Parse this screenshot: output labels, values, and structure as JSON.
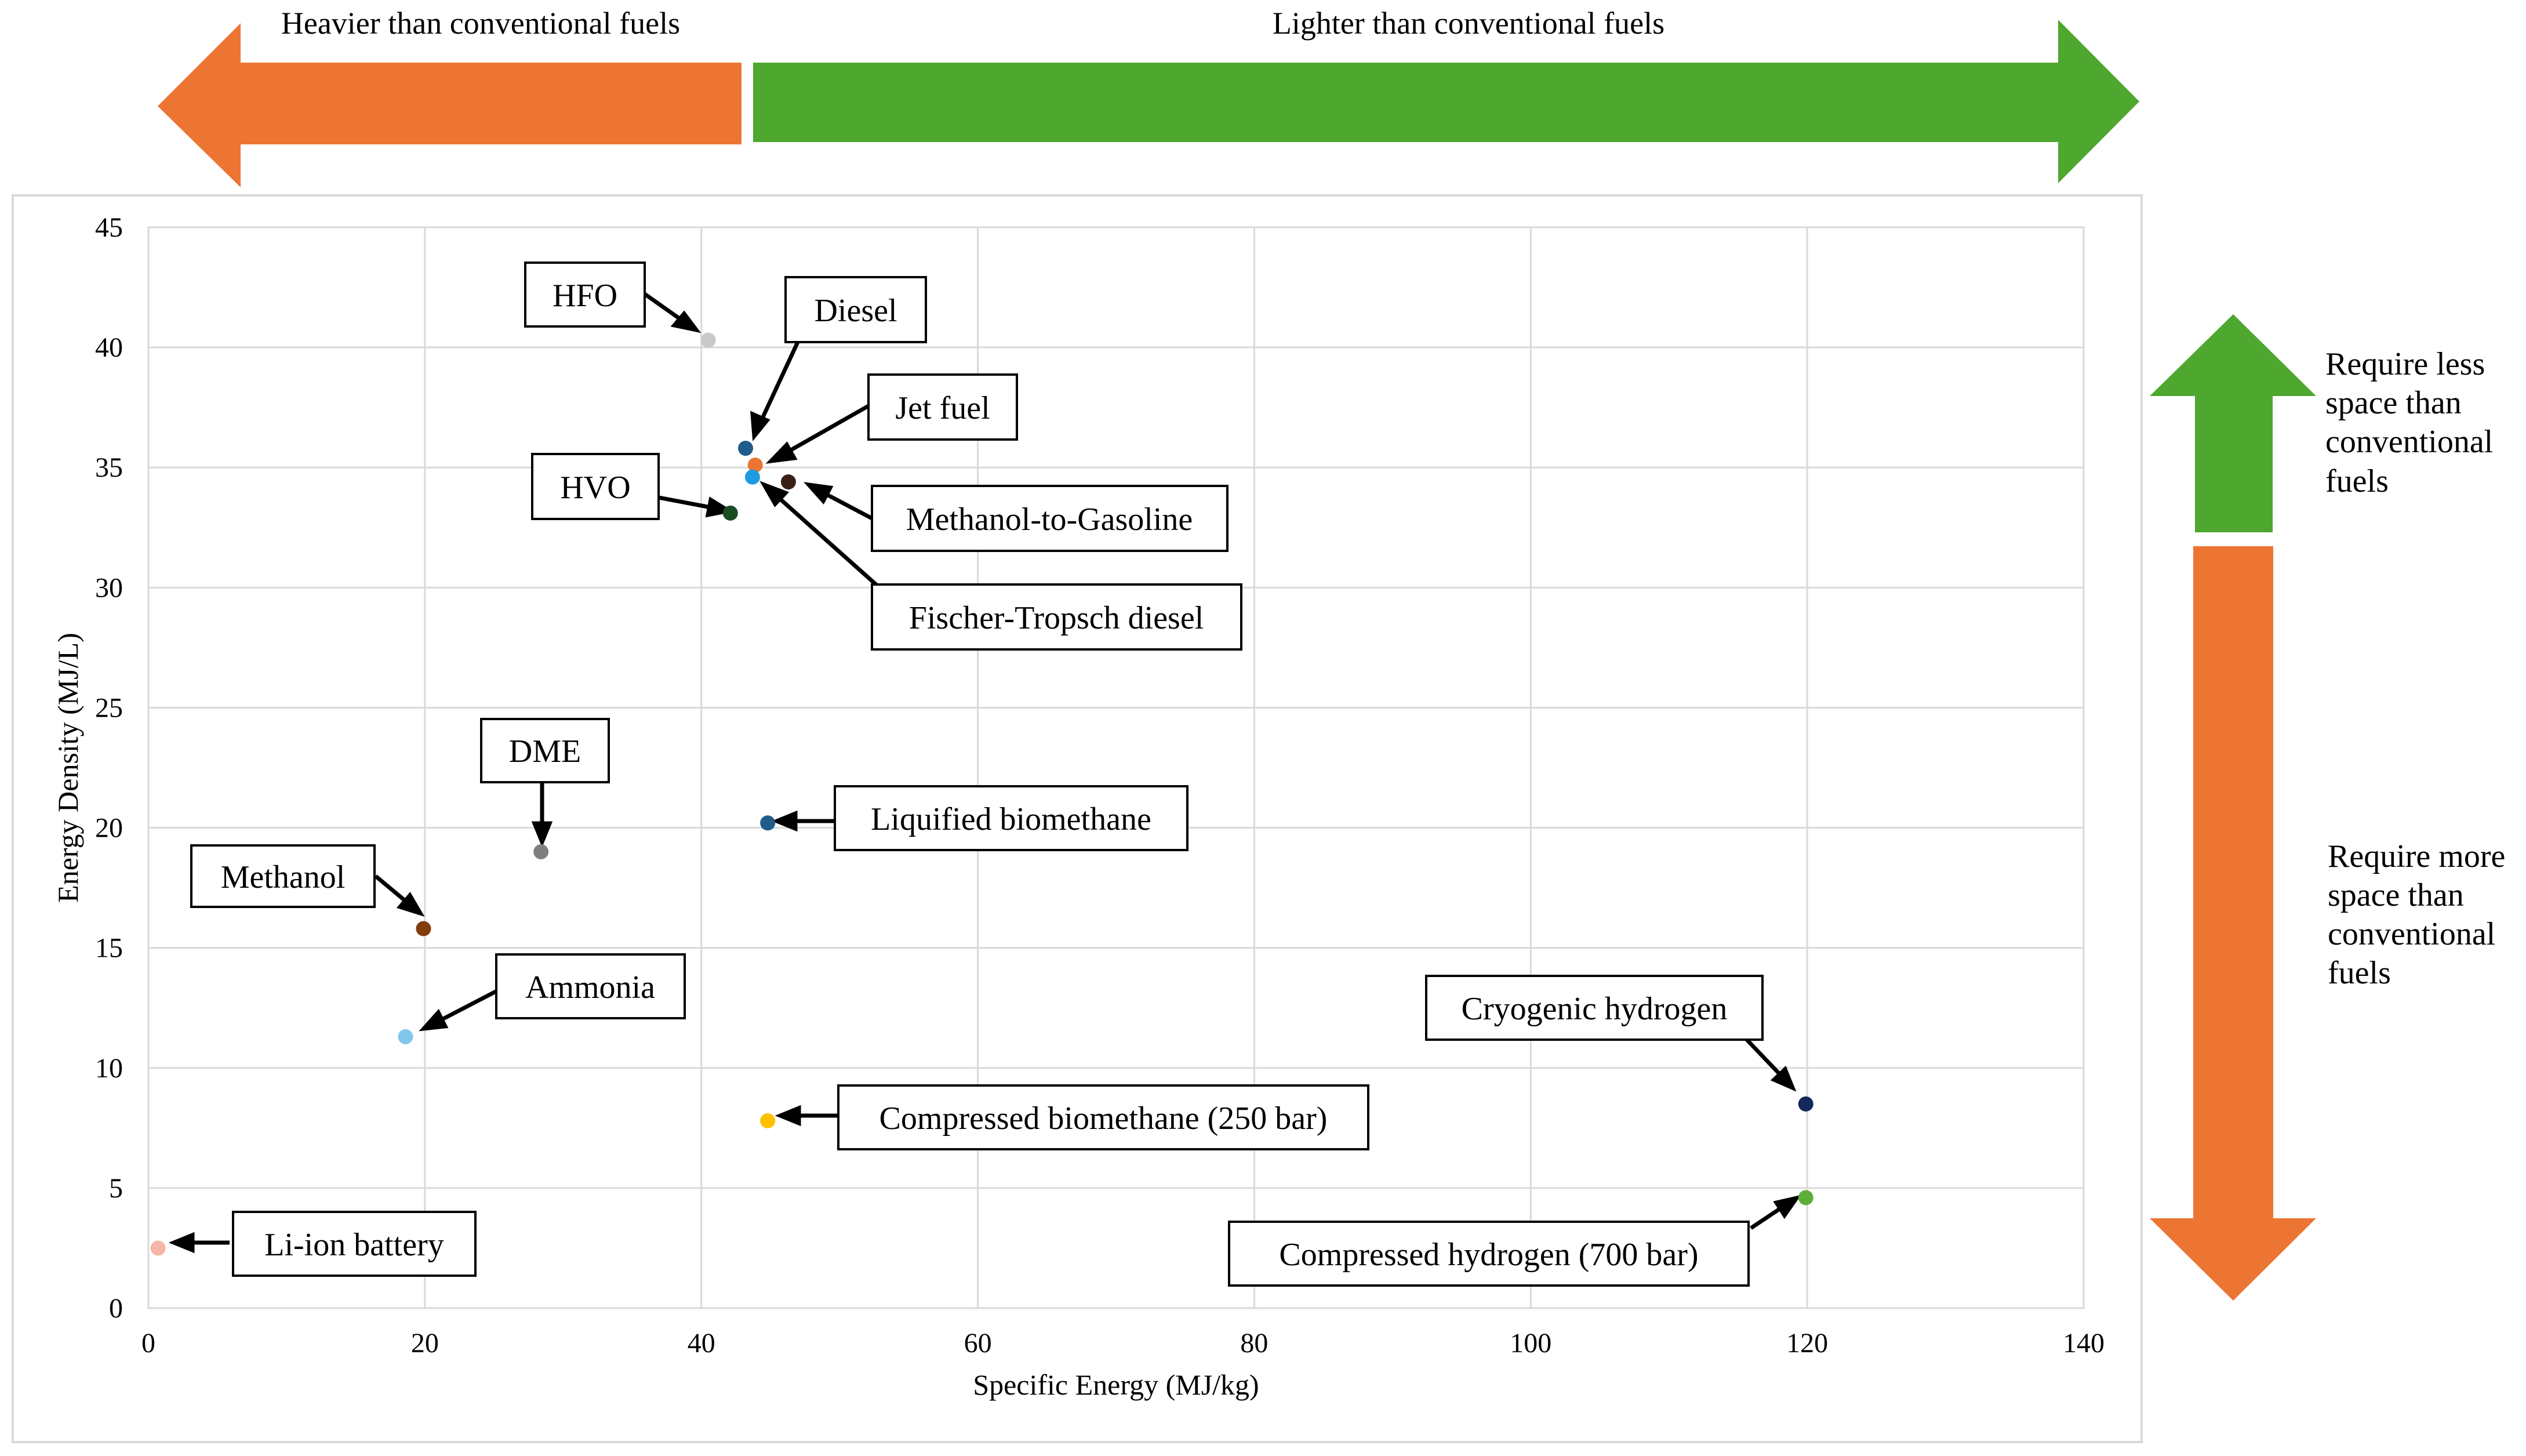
{
  "colors": {
    "heavier": "#ED7534",
    "lighter": "#4EA72E",
    "less_space": "#4EA72E",
    "more_space": "#ED7534",
    "grid": "#D9D9D9"
  },
  "banners": {
    "heavier": "Heavier than conventional fuels",
    "lighter": "Lighter than conventional fuels",
    "less_space": [
      "Require less",
      "space than",
      "conventional",
      "fuels"
    ],
    "more_space": [
      "Require more",
      "space than",
      "conventional",
      "fuels"
    ]
  },
  "chart_data": {
    "type": "scatter",
    "title": "",
    "xlabel": "Specific Energy (MJ/kg)",
    "ylabel": "Energy Density (MJ/L)",
    "xlim": [
      0,
      140
    ],
    "ylim": [
      0,
      45
    ],
    "xticks": [
      "0",
      "20",
      "40",
      "60",
      "80",
      "100",
      "120",
      "140"
    ],
    "yticks": [
      "0",
      "5",
      "10",
      "15",
      "20",
      "25",
      "30",
      "35",
      "40",
      "45"
    ],
    "grid": true,
    "legend": "none",
    "points": [
      {
        "name": "HFO",
        "x": 40.5,
        "y": 40.3,
        "color": "#C9C9C9"
      },
      {
        "name": "Diesel",
        "x": 43.2,
        "y": 35.8,
        "color": "#1F5C8A"
      },
      {
        "name": "Jet fuel",
        "x": 43.9,
        "y": 35.1,
        "color": "#ED7534"
      },
      {
        "name": "Methanol-to-Gasoline",
        "x": 46.3,
        "y": 34.4,
        "color": "#3A2117"
      },
      {
        "name": "Fischer-Tropsch diesel",
        "x": 43.7,
        "y": 34.6,
        "color": "#1E9BE0"
      },
      {
        "name": "HVO",
        "x": 42.1,
        "y": 33.1,
        "color": "#1B4D22"
      },
      {
        "name": "DME",
        "x": 28.4,
        "y": 19.0,
        "color": "#7F7F7F"
      },
      {
        "name": "Liquified biomethane",
        "x": 44.8,
        "y": 20.2,
        "color": "#1F5C8A"
      },
      {
        "name": "Methanol",
        "x": 19.9,
        "y": 15.8,
        "color": "#843C0C"
      },
      {
        "name": "Ammonia",
        "x": 18.6,
        "y": 11.3,
        "color": "#82C7EE"
      },
      {
        "name": "Compressed biomethane (250 bar)",
        "x": 44.8,
        "y": 7.8,
        "color": "#FFC000"
      },
      {
        "name": "Cryogenic hydrogen",
        "x": 119.9,
        "y": 8.5,
        "color": "#14285C"
      },
      {
        "name": "Compressed hydrogen (700 bar)",
        "x": 119.9,
        "y": 4.6,
        "color": "#5DAE3B"
      },
      {
        "name": "Li-ion battery",
        "x": 0.7,
        "y": 2.5,
        "color": "#F6B6A6"
      }
    ]
  }
}
